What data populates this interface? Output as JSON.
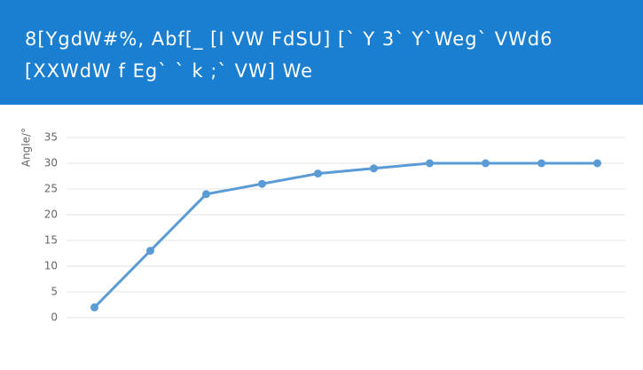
{
  "header": {
    "title": "8[YgdW#%, Abf[_ [I VW FdSU] [` Y 3` Y`Weg` VWd6 [XXWdW f Eg` ` k ;` VW] We"
  },
  "chart_data": {
    "type": "line",
    "y_label": "Angle/°",
    "categories": [
      null,
      null,
      null,
      null,
      null,
      null,
      null,
      null,
      null,
      null
    ],
    "series": [
      {
        "name": null,
        "color": "#5b9bd5",
        "values": [
          2,
          13,
          24,
          26,
          28,
          29,
          30,
          30,
          30,
          30
        ]
      }
    ],
    "ylim": [
      0,
      35
    ],
    "yticks": [
      0,
      5,
      10,
      15,
      20,
      25,
      30,
      35
    ],
    "grid": true
  }
}
